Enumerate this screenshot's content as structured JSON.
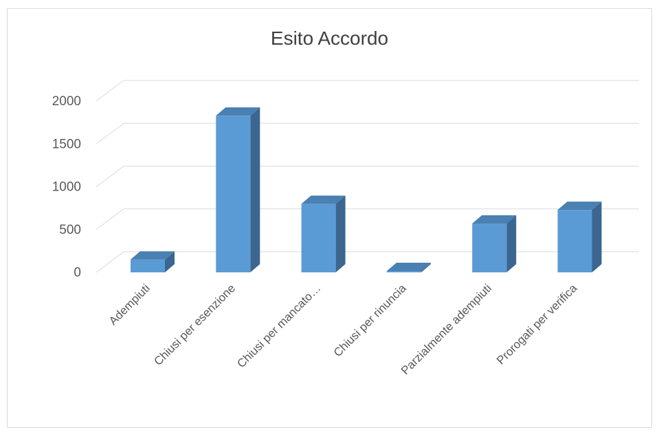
{
  "chart_data": {
    "type": "bar",
    "title": "Esito Accordo",
    "categories": [
      "Adempiuti",
      "Chiusi per esenzione",
      "Chiusi per mancato…",
      "Chiusi per rinuncia",
      "Parzialmente adempiuti",
      "Prorogati per verifica"
    ],
    "values": [
      150,
      1830,
      800,
      10,
      570,
      730
    ],
    "ylim": [
      0,
      2000
    ],
    "yticks": [
      0,
      500,
      1000,
      1500,
      2000
    ],
    "ytick_labels": [
      "0",
      "500",
      "1000",
      "1500",
      "2000"
    ],
    "grid": true,
    "legend": "none",
    "style": "3d-column"
  },
  "colors": {
    "bar_front": "#5b9bd5",
    "bar_side": "#3a6690",
    "bar_top": "#4a80b2",
    "grid": "#d9d9d9"
  }
}
